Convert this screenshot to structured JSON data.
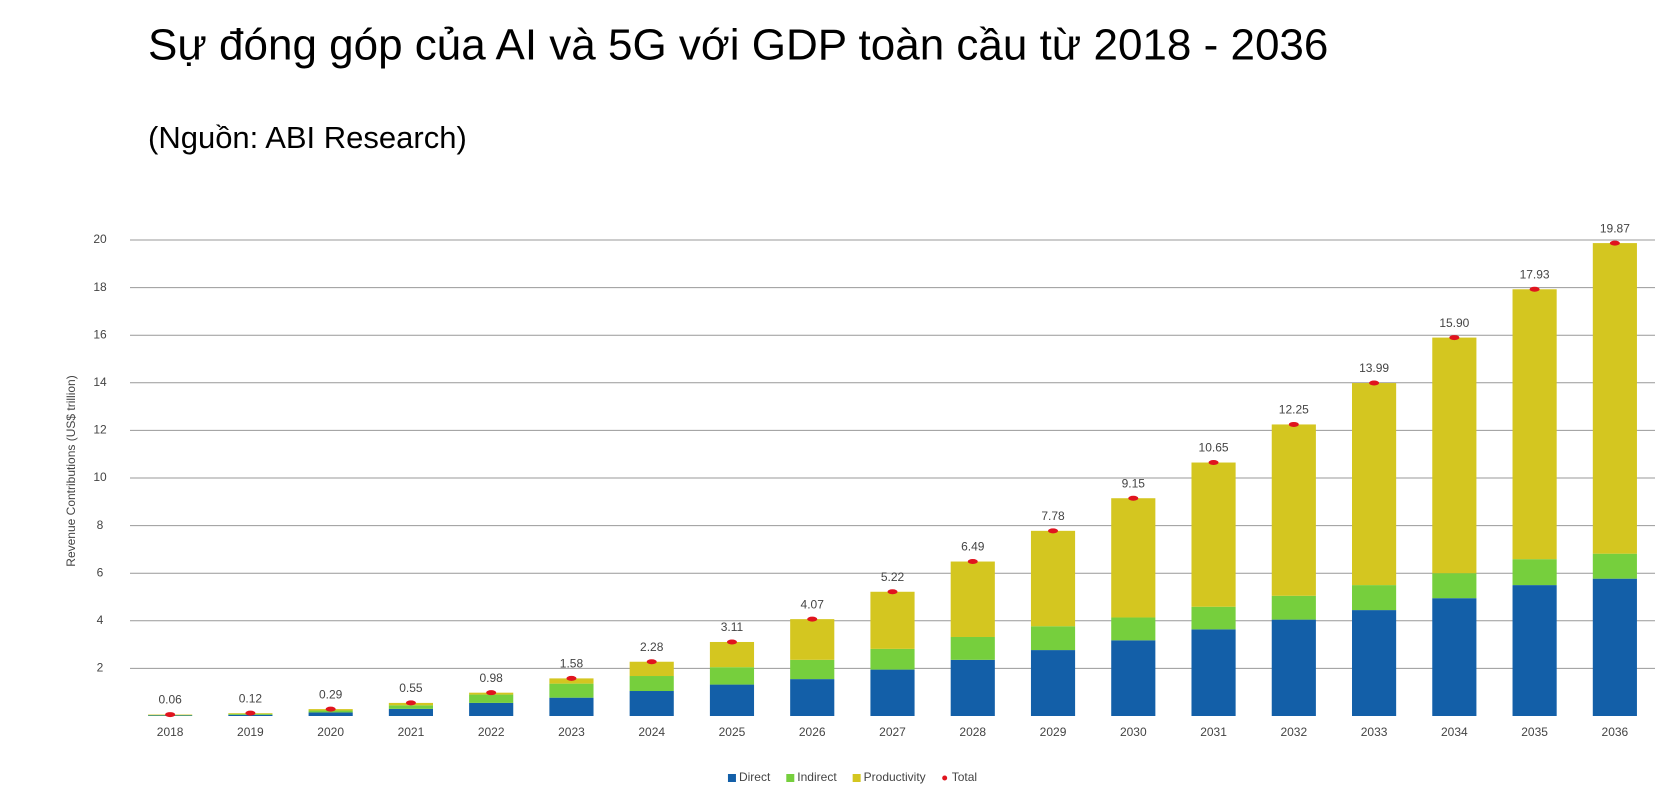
{
  "chart_data": {
    "type": "stacked-bar",
    "title": "Sự đóng góp của AI và 5G với GDP toàn cầu từ 2018 - 2036",
    "subtitle": "(Nguồn: ABI Research)",
    "y_label": "Revenue Contributions (US$ trillion)",
    "categories": [
      "2018",
      "2019",
      "2020",
      "2021",
      "2022",
      "2023",
      "2024",
      "2025",
      "2026",
      "2027",
      "2028",
      "2029",
      "2030",
      "2031",
      "2032",
      "2033",
      "2034",
      "2035",
      "2036"
    ],
    "series": [
      {
        "name": "Direct",
        "color": "#135fa8",
        "values": [
          0.02,
          0.05,
          0.15,
          0.3,
          0.55,
          0.77,
          1.05,
          1.32,
          1.55,
          1.95,
          2.36,
          2.77,
          3.18,
          3.64,
          4.05,
          4.45,
          4.95,
          5.5,
          5.77
        ]
      },
      {
        "name": "Indirect",
        "color": "#76cf3d",
        "values": [
          0.02,
          0.04,
          0.08,
          0.15,
          0.35,
          0.59,
          0.63,
          0.73,
          0.81,
          0.87,
          0.96,
          1.0,
          0.96,
          0.95,
          1.0,
          1.05,
          1.05,
          1.09,
          1.05
        ]
      },
      {
        "name": "Productivity",
        "color": "#d4c620",
        "values": [
          0.02,
          0.03,
          0.06,
          0.1,
          0.08,
          0.22,
          0.6,
          1.06,
          1.71,
          2.4,
          3.17,
          4.01,
          5.01,
          6.06,
          7.2,
          8.49,
          9.9,
          11.34,
          13.05
        ]
      }
    ],
    "totals": {
      "name": "Total",
      "color": "#e0141e",
      "values": [
        0.06,
        0.12,
        0.29,
        0.55,
        0.98,
        1.58,
        2.28,
        3.11,
        4.07,
        5.22,
        6.49,
        7.78,
        9.15,
        10.65,
        12.25,
        13.99,
        15.9,
        17.93,
        19.87
      ],
      "value_labels": [
        "0.06",
        "0.12",
        "0.29",
        "0.55",
        "0.98",
        "1.58",
        "2.28",
        "3.11",
        "4.07",
        "5.22",
        "6.49",
        "7.78",
        "9.15",
        "10.65",
        "12.25",
        "13.99",
        "15.90",
        "17.93",
        "19.87"
      ]
    },
    "ylim": [
      0,
      20
    ],
    "yticks": [
      2,
      4,
      6,
      8,
      10,
      12,
      14,
      16,
      18,
      20
    ],
    "grid": true,
    "legend": "bottom"
  }
}
